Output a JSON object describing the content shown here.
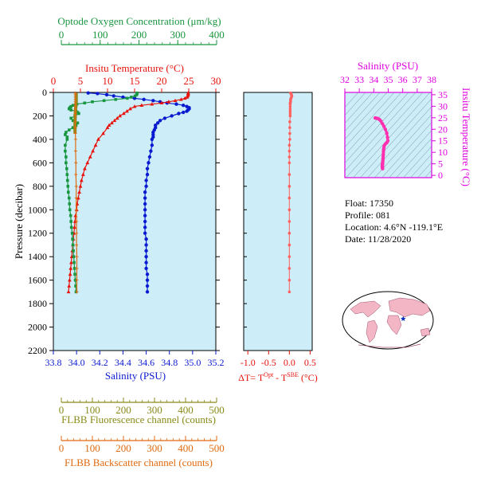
{
  "float_info": {
    "float_line": "Float:  17350",
    "profile_line": "Profile:  081",
    "location_line": "Location:  4.6°N  -119.1°E",
    "date_line": "Date:  11/28/2020"
  },
  "colors": {
    "oxygen": "#1a9641",
    "temperature": "#e8120c",
    "salinity": "#0a1ad0",
    "fluorescence": "#8a8a1a",
    "backscatter": "#e06a10",
    "delta_t": "#ff6060",
    "ts_plot": "#e000e0",
    "panel_bg": "#cdeef8"
  },
  "chart_data": [
    {
      "type": "line",
      "panel": "main_profile",
      "ylabel": "Pressure (decibar)",
      "yticks": [
        0,
        200,
        400,
        600,
        800,
        1000,
        1200,
        1400,
        1600,
        1800,
        2000,
        2200
      ],
      "ylim": [
        0,
        2200
      ],
      "y_reversed": true,
      "axes": {
        "oxygen": {
          "label": "Optode Oxygen Concentration (μm/kg)",
          "ticks": [
            0,
            100,
            200,
            300,
            400
          ],
          "lim": [
            0,
            400
          ]
        },
        "temperature": {
          "label": "Insitu Temperature (°C)",
          "ticks": [
            0,
            5,
            10,
            15,
            20,
            25,
            30
          ],
          "lim": [
            0,
            30
          ]
        },
        "salinity": {
          "label": "Salinity (PSU)",
          "ticks": [
            33.8,
            34.0,
            34.2,
            34.4,
            34.6,
            34.8,
            35.0,
            35.2
          ],
          "tick_labels": [
            "33.8",
            "34.0",
            "34.2",
            "34.4",
            "34.6",
            "34.8",
            "35.0",
            "35.2"
          ],
          "lim": [
            33.8,
            35.2
          ]
        },
        "fluorescence": {
          "label": "FLBB Fluorescence channel (counts)",
          "ticks": [
            0,
            100,
            200,
            300,
            400,
            500
          ],
          "lim": [
            0,
            500
          ]
        },
        "backscatter": {
          "label": "FLBB Backscatter channel (counts)",
          "ticks": [
            0,
            100,
            200,
            300,
            400,
            500
          ],
          "lim": [
            0,
            500
          ]
        }
      },
      "series": [
        {
          "name": "Salinity",
          "axis": "salinity",
          "pressure": [
            5,
            10,
            20,
            30,
            40,
            50,
            60,
            70,
            80,
            90,
            100,
            110,
            120,
            130,
            140,
            150,
            160,
            170,
            180,
            200,
            220,
            240,
            260,
            280,
            300,
            320,
            340,
            360,
            380,
            400,
            450,
            500,
            550,
            600,
            650,
            700,
            750,
            800,
            850,
            900,
            950,
            1000,
            1050,
            1100,
            1150,
            1200,
            1250,
            1300,
            1350,
            1400,
            1450,
            1500,
            1550,
            1600,
            1650,
            1700
          ],
          "values": [
            34.1,
            34.18,
            34.26,
            34.32,
            34.4,
            34.5,
            34.58,
            34.66,
            34.72,
            34.78,
            34.86,
            34.92,
            34.95,
            34.97,
            34.97,
            34.96,
            34.95,
            34.92,
            34.88,
            34.82,
            34.76,
            34.72,
            34.7,
            34.68,
            34.68,
            34.67,
            34.66,
            34.66,
            34.66,
            34.65,
            34.65,
            34.64,
            34.63,
            34.62,
            34.61,
            34.61,
            34.6,
            34.6,
            34.59,
            34.59,
            34.59,
            34.59,
            34.59,
            34.59,
            34.59,
            34.59,
            34.6,
            34.6,
            34.6,
            34.6,
            34.6,
            34.6,
            34.61,
            34.61,
            34.61,
            34.61
          ]
        },
        {
          "name": "Temperature",
          "axis": "temperature",
          "pressure": [
            5,
            10,
            20,
            30,
            40,
            50,
            60,
            70,
            80,
            90,
            100,
            110,
            120,
            140,
            160,
            180,
            200,
            220,
            240,
            260,
            280,
            300,
            350,
            400,
            450,
            500,
            550,
            600,
            650,
            700,
            750,
            800,
            850,
            900,
            950,
            1000,
            1050,
            1100,
            1150,
            1200,
            1250,
            1300,
            1350,
            1400,
            1450,
            1500,
            1550,
            1600,
            1650,
            1700
          ],
          "values": [
            24.9,
            24.9,
            24.9,
            24.8,
            24.7,
            24.3,
            23.6,
            22.5,
            21.3,
            20.0,
            18.2,
            16.3,
            15.0,
            14.2,
            13.6,
            13.0,
            12.3,
            11.8,
            11.3,
            10.8,
            10.3,
            10.0,
            9.2,
            8.3,
            7.8,
            7.3,
            6.8,
            6.3,
            5.8,
            5.5,
            5.2,
            5.0,
            4.8,
            4.6,
            4.4,
            4.3,
            4.1,
            4.0,
            3.9,
            3.8,
            3.7,
            3.6,
            3.5,
            3.4,
            3.3,
            3.2,
            3.1,
            3.0,
            2.9,
            2.8
          ]
        },
        {
          "name": "Oxygen",
          "axis": "oxygen",
          "pressure": [
            5,
            10,
            20,
            30,
            40,
            50,
            60,
            70,
            80,
            90,
            100,
            110,
            120,
            130,
            140,
            150,
            160,
            170,
            180,
            200,
            220,
            240,
            260,
            280,
            300,
            320,
            340,
            360,
            380,
            400,
            450,
            500,
            550,
            600,
            650,
            700,
            750,
            800,
            850,
            900,
            950,
            1000,
            1050,
            1100,
            1150,
            1200,
            1250,
            1300,
            1350,
            1400,
            1450,
            1500,
            1550,
            1600,
            1650,
            1700
          ],
          "values": [
            195,
            195,
            194,
            190,
            180,
            170,
            140,
            110,
            80,
            60,
            40,
            30,
            25,
            22,
            20,
            25,
            38,
            42,
            45,
            35,
            25,
            30,
            42,
            38,
            30,
            20,
            12,
            10,
            15,
            15,
            10,
            10,
            12,
            12,
            14,
            15,
            16,
            17,
            18,
            20,
            21,
            22,
            24,
            25,
            26,
            28,
            29,
            30,
            31,
            32,
            33,
            34,
            35,
            36,
            37,
            38
          ]
        },
        {
          "name": "Fluorescence",
          "axis": "fluorescence",
          "pressure": [
            5,
            20,
            40,
            60,
            80,
            100,
            120,
            140,
            160,
            180,
            200,
            250,
            300,
            350
          ],
          "values": [
            48,
            48,
            48,
            48,
            48,
            47,
            47,
            46,
            46,
            45,
            45,
            44,
            44,
            44
          ]
        },
        {
          "name": "Backscatter",
          "axis": "backscatter",
          "pressure": [
            5,
            20,
            40,
            60,
            80,
            100,
            120,
            140,
            160,
            180,
            200,
            250,
            300,
            350,
            400,
            500,
            600,
            700,
            800,
            900,
            1000,
            1100,
            1200,
            1300,
            1400,
            1500,
            1600,
            1700
          ],
          "values": [
            45,
            45,
            45,
            45,
            45,
            45,
            45,
            45,
            45,
            45,
            45,
            45,
            45,
            45,
            46,
            46,
            47,
            47,
            48,
            48,
            48,
            49,
            49,
            49,
            50,
            50,
            50,
            50
          ]
        }
      ]
    },
    {
      "type": "scatter",
      "panel": "delta_t",
      "xlabel": "ΔT= T^Opt - T^SBE (°C)",
      "xlabel_parts": {
        "pre": "ΔT= T",
        "sup1": "Opt",
        "mid": " - T",
        "sup2": "SBE",
        "post": " (°C)"
      },
      "xticks": [
        -1.0,
        -0.5,
        0.0,
        0.5
      ],
      "xtick_labels": [
        "-1.0",
        "-0.5",
        "0.0",
        "0.5"
      ],
      "xlim": [
        -1.1,
        0.55
      ],
      "pressure": [
        5,
        10,
        20,
        30,
        40,
        50,
        60,
        70,
        80,
        90,
        100,
        120,
        140,
        160,
        180,
        200,
        250,
        300,
        350,
        400,
        450,
        500,
        550,
        600,
        700,
        800,
        900,
        1000,
        1100,
        1200,
        1300,
        1400,
        1500,
        1600,
        1700
      ],
      "values": [
        0.03,
        0.04,
        0.05,
        0.06,
        0.05,
        0.04,
        0.03,
        0.03,
        0.03,
        0.02,
        0.02,
        0.02,
        0.02,
        0.02,
        0.02,
        0.02,
        0.01,
        0.01,
        0.01,
        0.01,
        0.0,
        0.0,
        0.0,
        0.0,
        0.0,
        0.0,
        0.0,
        0.0,
        0.0,
        0.0,
        0.0,
        0.0,
        0.0,
        0.0,
        0.0
      ]
    },
    {
      "type": "scatter",
      "panel": "ts_diagram",
      "xlabel": "Salinity (PSU)",
      "ylabel": "Insitu Temperature (°C)",
      "xticks": [
        32,
        33,
        34,
        35,
        36,
        37,
        38
      ],
      "xlim": [
        32,
        38
      ],
      "yticks": [
        0,
        5,
        10,
        15,
        20,
        25,
        30,
        35
      ],
      "ylim": [
        -1,
        36
      ],
      "salinity": [
        34.1,
        34.2,
        34.3,
        34.4,
        34.5,
        34.6,
        34.7,
        34.8,
        34.9,
        34.95,
        34.97,
        34.9,
        34.8,
        34.72,
        34.7,
        34.68,
        34.67,
        34.66,
        34.65,
        34.64,
        34.63,
        34.62,
        34.61,
        34.6,
        34.6,
        34.59,
        34.59,
        34.6,
        34.6,
        34.61
      ],
      "temperature": [
        24.9,
        24.8,
        24.6,
        24.2,
        23.5,
        22.4,
        21.3,
        20.0,
        18.3,
        16.5,
        15.0,
        14.2,
        13.6,
        12.8,
        12.0,
        11.2,
        10.3,
        9.2,
        8.3,
        7.3,
        6.5,
        5.8,
        5.2,
        4.8,
        4.4,
        4.1,
        3.8,
        3.5,
        3.2,
        2.9
      ]
    },
    {
      "type": "scatter",
      "panel": "world_map",
      "marker": "star",
      "latitude": [
        4.6
      ],
      "longitude": [
        -119.1
      ]
    }
  ]
}
